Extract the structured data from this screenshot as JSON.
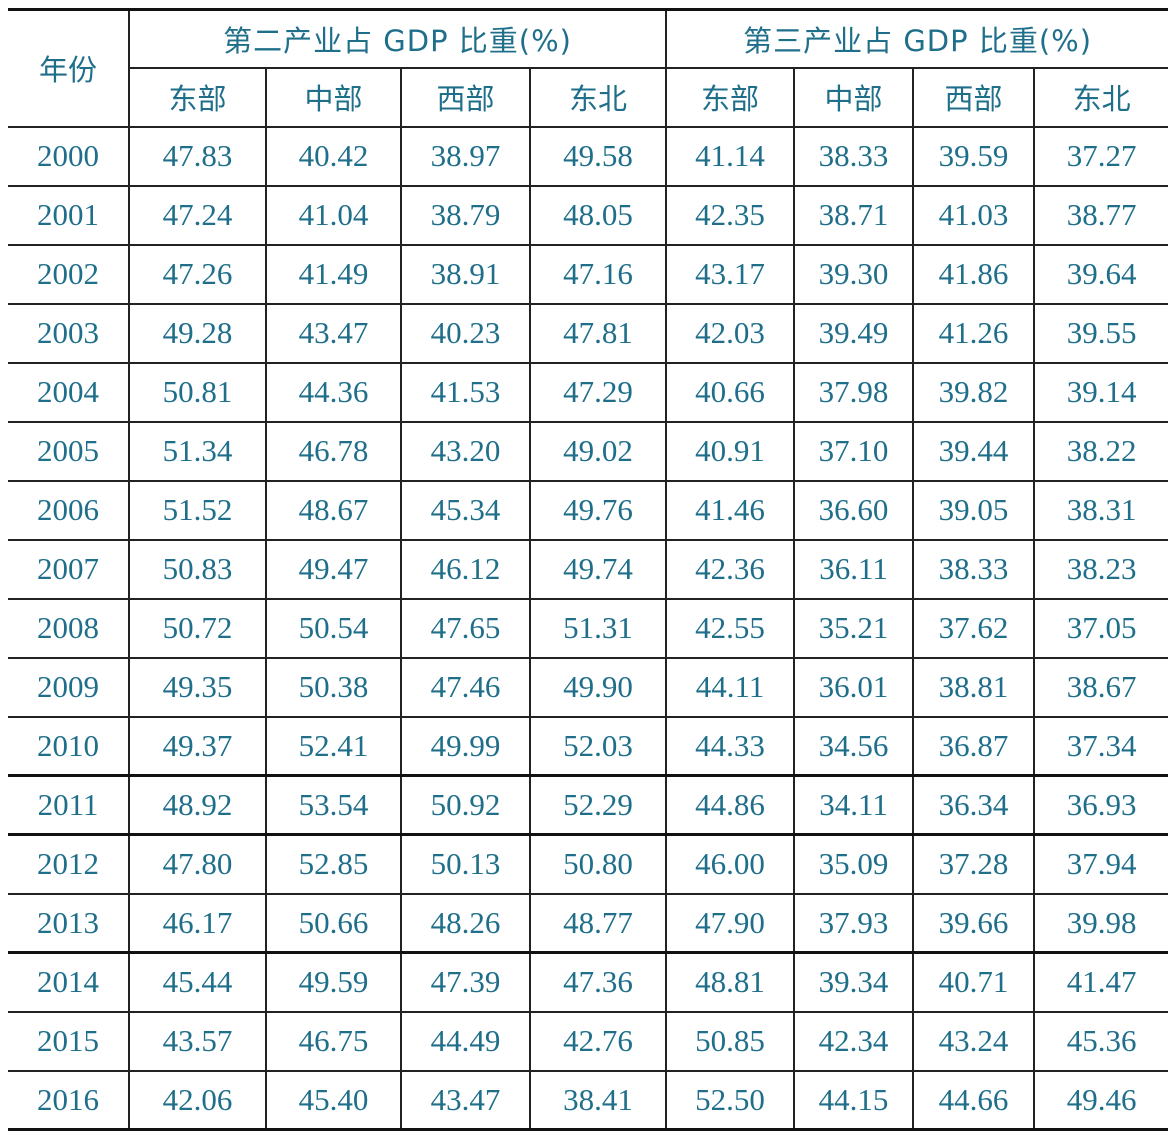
{
  "table": {
    "year_header": "年份",
    "group_headers": [
      "第二产业占 GDP 比重(%)",
      "第三产业占 GDP 比重(%)"
    ],
    "region_headers": [
      "东部",
      "中部",
      "西部",
      "东北",
      "东部",
      "中部",
      "西部",
      "东北"
    ],
    "rows": [
      {
        "year": "2000",
        "values": [
          "47.83",
          "40.42",
          "38.97",
          "49.58",
          "41.14",
          "38.33",
          "39.59",
          "37.27"
        ]
      },
      {
        "year": "2001",
        "values": [
          "47.24",
          "41.04",
          "38.79",
          "48.05",
          "42.35",
          "38.71",
          "41.03",
          "38.77"
        ]
      },
      {
        "year": "2002",
        "values": [
          "47.26",
          "41.49",
          "38.91",
          "47.16",
          "43.17",
          "39.30",
          "41.86",
          "39.64"
        ]
      },
      {
        "year": "2003",
        "values": [
          "49.28",
          "43.47",
          "40.23",
          "47.81",
          "42.03",
          "39.49",
          "41.26",
          "39.55"
        ]
      },
      {
        "year": "2004",
        "values": [
          "50.81",
          "44.36",
          "41.53",
          "47.29",
          "40.66",
          "37.98",
          "39.82",
          "39.14"
        ]
      },
      {
        "year": "2005",
        "values": [
          "51.34",
          "46.78",
          "43.20",
          "49.02",
          "40.91",
          "37.10",
          "39.44",
          "38.22"
        ]
      },
      {
        "year": "2006",
        "values": [
          "51.52",
          "48.67",
          "45.34",
          "49.76",
          "41.46",
          "36.60",
          "39.05",
          "38.31"
        ]
      },
      {
        "year": "2007",
        "values": [
          "50.83",
          "49.47",
          "46.12",
          "49.74",
          "42.36",
          "36.11",
          "38.33",
          "38.23"
        ]
      },
      {
        "year": "2008",
        "values": [
          "50.72",
          "50.54",
          "47.65",
          "51.31",
          "42.55",
          "35.21",
          "37.62",
          "37.05"
        ]
      },
      {
        "year": "2009",
        "values": [
          "49.35",
          "50.38",
          "47.46",
          "49.90",
          "44.11",
          "36.01",
          "38.81",
          "38.67"
        ]
      },
      {
        "year": "2010",
        "values": [
          "49.37",
          "52.41",
          "49.99",
          "52.03",
          "44.33",
          "34.56",
          "36.87",
          "37.34"
        ]
      },
      {
        "year": "2011",
        "values": [
          "48.92",
          "53.54",
          "50.92",
          "52.29",
          "44.86",
          "34.11",
          "36.34",
          "36.93"
        ]
      },
      {
        "year": "2012",
        "values": [
          "47.80",
          "52.85",
          "50.13",
          "50.80",
          "46.00",
          "35.09",
          "37.28",
          "37.94"
        ]
      },
      {
        "year": "2013",
        "values": [
          "46.17",
          "50.66",
          "48.26",
          "48.77",
          "47.90",
          "37.93",
          "39.66",
          "39.98"
        ]
      },
      {
        "year": "2014",
        "values": [
          "45.44",
          "49.59",
          "47.39",
          "47.36",
          "48.81",
          "39.34",
          "40.71",
          "41.47"
        ]
      },
      {
        "year": "2015",
        "values": [
          "43.57",
          "46.75",
          "44.49",
          "42.76",
          "50.85",
          "42.34",
          "43.24",
          "45.36"
        ]
      },
      {
        "year": "2016",
        "values": [
          "42.06",
          "45.40",
          "43.47",
          "38.41",
          "52.50",
          "44.15",
          "44.66",
          "49.46"
        ]
      }
    ]
  }
}
